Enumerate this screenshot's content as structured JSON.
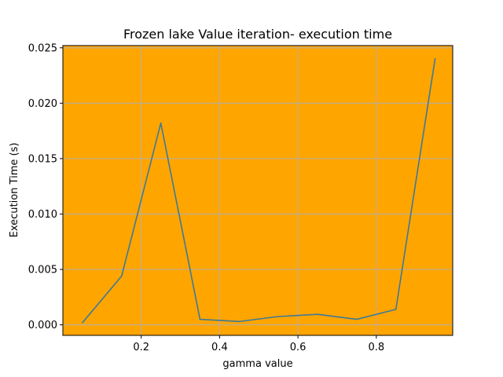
{
  "chart_data": {
    "type": "line",
    "title": "Frozen lake Value iteration- execution time",
    "xlabel": "gamma value",
    "ylabel": "Execution Time (s)",
    "xlim": [
      0.0,
      0.995
    ],
    "ylim": [
      -0.00095,
      0.0252
    ],
    "x_ticks": [
      0.2,
      0.4,
      0.6,
      0.8
    ],
    "x_tick_labels": [
      "0.2",
      "0.4",
      "0.6",
      "0.8"
    ],
    "y_ticks": [
      0.0,
      0.005,
      0.01,
      0.015,
      0.02,
      0.025
    ],
    "y_tick_labels": [
      "0.000",
      "0.005",
      "0.010",
      "0.015",
      "0.020",
      "0.025"
    ],
    "grid": true,
    "background_color": "#FFA500",
    "series": [
      {
        "color": "#3B7A99",
        "x": [
          0.05,
          0.15,
          0.25,
          0.35,
          0.45,
          0.55,
          0.65,
          0.75,
          0.85,
          0.95
        ],
        "y": [
          0.0002,
          0.0044,
          0.0182,
          0.0005,
          0.0003,
          0.00075,
          0.00095,
          0.0005,
          0.0014,
          0.024
        ]
      }
    ]
  }
}
